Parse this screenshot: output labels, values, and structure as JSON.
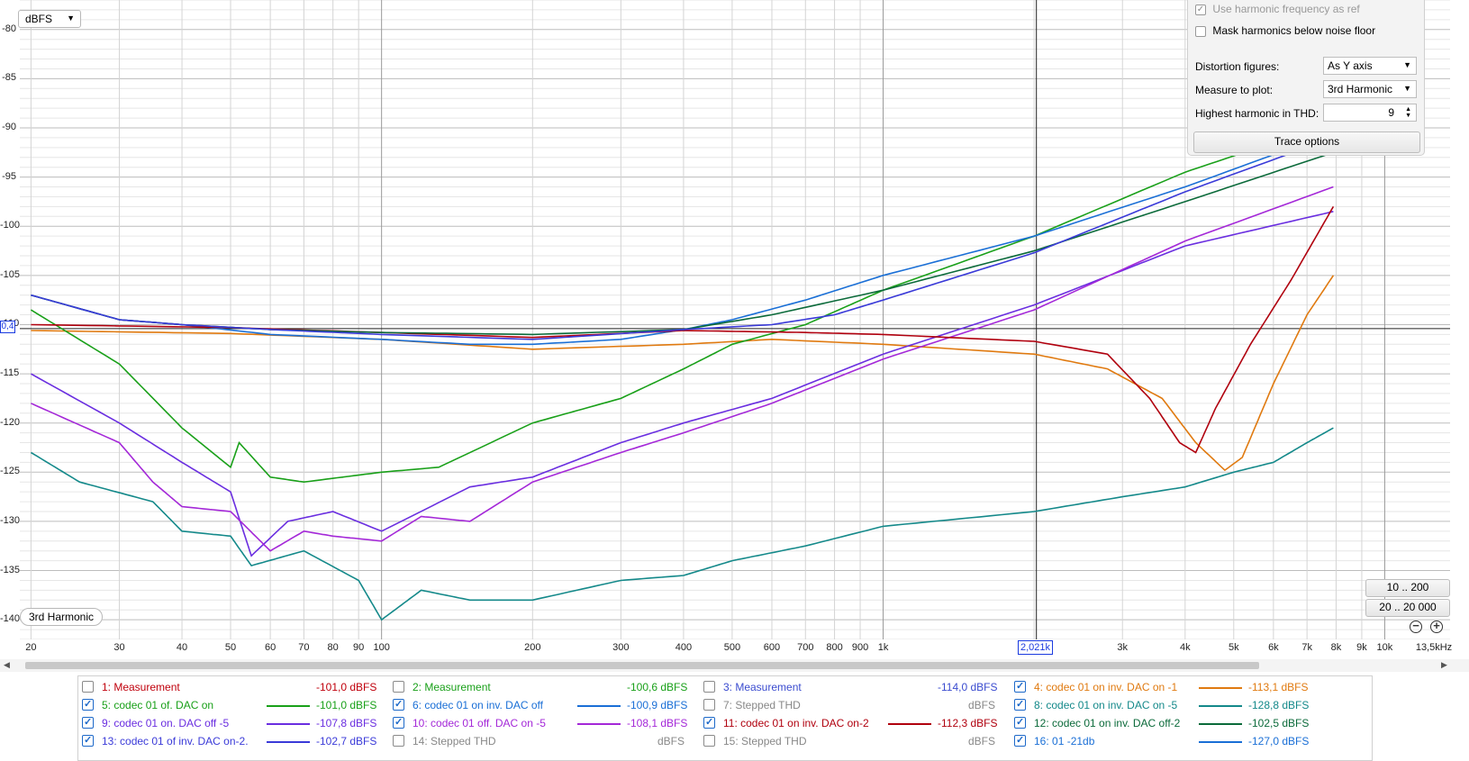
{
  "toolbar": {
    "unit": "dBFS"
  },
  "graph": {
    "badge": "3rd Harmonic",
    "cursor_y": "0,4",
    "cursor_x": "2,021k",
    "y_ticks": [
      "-80",
      "-85",
      "-90",
      "-95",
      "-100",
      "-105",
      "-110",
      "-115",
      "-120",
      "-125",
      "-130",
      "-135",
      "-140"
    ],
    "x_ticks": [
      "20",
      "30",
      "40",
      "50",
      "60",
      "70",
      "80",
      "90",
      "100",
      "200",
      "300",
      "400",
      "500",
      "600",
      "700",
      "800",
      "900",
      "1k",
      "2,021k",
      "3k",
      "4k",
      "5k",
      "6k",
      "7k",
      "8k",
      "9k",
      "10k",
      "13,5kHz"
    ]
  },
  "panel": {
    "use_harmonic_label": "Use harmonic frequency as ref",
    "mask_label": "Mask harmonics below noise floor",
    "distortion_label": "Distortion figures:",
    "distortion_value": "As Y axis",
    "measure_label": "Measure to plot:",
    "measure_value": "3rd Harmonic",
    "highest_label": "Highest harmonic in THD:",
    "highest_value": "9",
    "trace_button": "Trace options"
  },
  "zoom": {
    "btn1": "10 .. 200",
    "btn2": "20 .. 20 000"
  },
  "legend": [
    {
      "name": "1: Measurement",
      "value": "-101,0 dBFS",
      "checked": false,
      "color": "#c0000c"
    },
    {
      "name": "2: Measurement",
      "value": "-100,6 dBFS",
      "checked": false,
      "color": "#19a019"
    },
    {
      "name": "3: Measurement",
      "value": "-114,0 dBFS",
      "checked": false,
      "color": "#3a4bcf"
    },
    {
      "name": "4: codec 01 on inv. DAC on -1",
      "value": "-113,1 dBFS",
      "checked": true,
      "color": "#e07a10"
    },
    {
      "name": "5: codec 01 of. DAC on",
      "value": "-101,0 dBFS",
      "checked": true,
      "color": "#19a019"
    },
    {
      "name": "6: codec 01 on inv. DAC off",
      "value": "-100,9 dBFS",
      "checked": true,
      "color": "#1a6fd6"
    },
    {
      "name": "7: Stepped THD",
      "value": "dBFS",
      "checked": false,
      "color": "#999999"
    },
    {
      "name": "8: codec 01 on inv. DAC on -5",
      "value": "-128,8 dBFS",
      "checked": true,
      "color": "#14898a"
    },
    {
      "name": "9: codec 01 on. DAC off -5",
      "value": "-107,8 dBFS",
      "checked": true,
      "color": "#6a2ee0"
    },
    {
      "name": "10: codec 01 off. DAC on -5",
      "value": "-108,1 dBFS",
      "checked": true,
      "color": "#a428d8"
    },
    {
      "name": "11: codec 01 on inv. DAC on-2",
      "value": "-112,3 dBFS",
      "checked": true,
      "color": "#b0000e"
    },
    {
      "name": "12: codec 01 on inv. DAC off-2",
      "value": "-102,5 dBFS",
      "checked": true,
      "color": "#0b6a3a"
    },
    {
      "name": "13: codec 01 of inv. DAC on-2.",
      "value": "-102,7 dBFS",
      "checked": true,
      "color": "#3a3ad8"
    },
    {
      "name": "14: Stepped THD",
      "value": "dBFS",
      "checked": false,
      "color": "#999999"
    },
    {
      "name": "15: Stepped THD",
      "value": "dBFS",
      "checked": false,
      "color": "#999999"
    },
    {
      "name": "16: 01 -21db",
      "value": "-127,0 dBFS",
      "checked": true,
      "color": "#1a6fd6"
    }
  ],
  "chart_data": {
    "type": "line",
    "xlabel": "",
    "ylabel": "",
    "xlim": [
      19,
      13500
    ],
    "ylim": [
      -142,
      -77
    ],
    "x_scale": "log",
    "grid": true,
    "series": [
      {
        "name": "4: codec 01 on inv. DAC on -1",
        "color": "#e07a10",
        "points": [
          [
            20,
            -110.6
          ],
          [
            50,
            -110.9
          ],
          [
            100,
            -111.5
          ],
          [
            200,
            -112.5
          ],
          [
            400,
            -112.0
          ],
          [
            600,
            -111.5
          ],
          [
            1000,
            -112.0
          ],
          [
            2000,
            -113.0
          ],
          [
            2800,
            -114.5
          ],
          [
            3600,
            -117.5
          ],
          [
            4200,
            -122.0
          ],
          [
            4800,
            -124.8
          ],
          [
            5200,
            -123.5
          ],
          [
            6000,
            -116.0
          ],
          [
            7000,
            -109.0
          ],
          [
            7900,
            -105.0
          ]
        ]
      },
      {
        "name": "5: codec 01 of. DAC on",
        "color": "#19a019",
        "points": [
          [
            20,
            -108.5
          ],
          [
            30,
            -114.0
          ],
          [
            40,
            -120.5
          ],
          [
            50,
            -124.5
          ],
          [
            52,
            -122.0
          ],
          [
            60,
            -125.5
          ],
          [
            70,
            -126.0
          ],
          [
            100,
            -125.0
          ],
          [
            130,
            -124.5
          ],
          [
            200,
            -120.0
          ],
          [
            300,
            -117.5
          ],
          [
            400,
            -114.5
          ],
          [
            500,
            -112.0
          ],
          [
            700,
            -110.0
          ],
          [
            1000,
            -106.5
          ],
          [
            2000,
            -101.0
          ],
          [
            4000,
            -94.5
          ],
          [
            6000,
            -91.5
          ],
          [
            7900,
            -89.0
          ]
        ]
      },
      {
        "name": "6: codec 01 on inv. DAC off",
        "color": "#1a6fd6",
        "points": [
          [
            20,
            -107.0
          ],
          [
            30,
            -109.5
          ],
          [
            40,
            -110.0
          ],
          [
            60,
            -111.0
          ],
          [
            100,
            -111.5
          ],
          [
            150,
            -112.0
          ],
          [
            200,
            -112.0
          ],
          [
            300,
            -111.5
          ],
          [
            400,
            -110.5
          ],
          [
            500,
            -109.5
          ],
          [
            700,
            -107.5
          ],
          [
            1000,
            -105.0
          ],
          [
            2000,
            -101.0
          ],
          [
            4000,
            -96.0
          ],
          [
            7900,
            -90.5
          ]
        ]
      },
      {
        "name": "8: codec 01 on inv. DAC on -5",
        "color": "#14898a",
        "points": [
          [
            20,
            -123.0
          ],
          [
            25,
            -126.0
          ],
          [
            35,
            -128.0
          ],
          [
            40,
            -131.0
          ],
          [
            50,
            -131.5
          ],
          [
            55,
            -134.5
          ],
          [
            70,
            -133.0
          ],
          [
            90,
            -136.0
          ],
          [
            100,
            -140.0
          ],
          [
            120,
            -137.0
          ],
          [
            150,
            -138.0
          ],
          [
            200,
            -138.0
          ],
          [
            300,
            -136.0
          ],
          [
            400,
            -135.5
          ],
          [
            500,
            -134.0
          ],
          [
            700,
            -132.5
          ],
          [
            1000,
            -130.5
          ],
          [
            2000,
            -129.0
          ],
          [
            3000,
            -127.5
          ],
          [
            4000,
            -126.5
          ],
          [
            5000,
            -125.0
          ],
          [
            6000,
            -124.0
          ],
          [
            7000,
            -122.0
          ],
          [
            7900,
            -120.5
          ]
        ]
      },
      {
        "name": "9: codec 01 on. DAC off -5",
        "color": "#6a2ee0",
        "points": [
          [
            20,
            -115.0
          ],
          [
            30,
            -120.0
          ],
          [
            40,
            -124.0
          ],
          [
            50,
            -127.0
          ],
          [
            55,
            -133.5
          ],
          [
            65,
            -130.0
          ],
          [
            80,
            -129.0
          ],
          [
            100,
            -131.0
          ],
          [
            150,
            -126.5
          ],
          [
            200,
            -125.5
          ],
          [
            300,
            -122.0
          ],
          [
            400,
            -120.0
          ],
          [
            600,
            -117.5
          ],
          [
            1000,
            -113.0
          ],
          [
            2000,
            -108.0
          ],
          [
            4000,
            -102.0
          ],
          [
            7900,
            -98.5
          ]
        ]
      },
      {
        "name": "10: codec 01 off. DAC on -5",
        "color": "#a428d8",
        "points": [
          [
            20,
            -118.0
          ],
          [
            30,
            -122.0
          ],
          [
            35,
            -126.0
          ],
          [
            40,
            -128.5
          ],
          [
            50,
            -129.0
          ],
          [
            60,
            -133.0
          ],
          [
            70,
            -131.0
          ],
          [
            80,
            -131.5
          ],
          [
            100,
            -132.0
          ],
          [
            120,
            -129.5
          ],
          [
            150,
            -130.0
          ],
          [
            200,
            -126.0
          ],
          [
            300,
            -123.0
          ],
          [
            400,
            -121.0
          ],
          [
            600,
            -118.0
          ],
          [
            1000,
            -113.5
          ],
          [
            2000,
            -108.5
          ],
          [
            4000,
            -101.5
          ],
          [
            7900,
            -96.0
          ]
        ]
      },
      {
        "name": "11: codec 01 on inv. DAC on-2",
        "color": "#b0000e",
        "points": [
          [
            20,
            -110.0
          ],
          [
            50,
            -110.3
          ],
          [
            100,
            -110.8
          ],
          [
            200,
            -111.3
          ],
          [
            400,
            -110.6
          ],
          [
            700,
            -110.8
          ],
          [
            1000,
            -111.0
          ],
          [
            2000,
            -111.7
          ],
          [
            2800,
            -113.0
          ],
          [
            3400,
            -117.5
          ],
          [
            3900,
            -122.0
          ],
          [
            4200,
            -123.0
          ],
          [
            4600,
            -118.5
          ],
          [
            5400,
            -112.0
          ],
          [
            6500,
            -105.5
          ],
          [
            7900,
            -98.0
          ]
        ]
      },
      {
        "name": "12: codec 01 on inv. DAC off-2",
        "color": "#0b6a3a",
        "points": [
          [
            20,
            -107.0
          ],
          [
            30,
            -109.5
          ],
          [
            40,
            -110.0
          ],
          [
            60,
            -110.5
          ],
          [
            100,
            -110.8
          ],
          [
            200,
            -111.0
          ],
          [
            400,
            -110.5
          ],
          [
            600,
            -109.0
          ],
          [
            1000,
            -106.5
          ],
          [
            2000,
            -102.5
          ],
          [
            4000,
            -97.5
          ],
          [
            7900,
            -92.5
          ]
        ]
      },
      {
        "name": "13: codec 01 of inv. DAC on-2.",
        "color": "#3a3ad8",
        "points": [
          [
            20,
            -107.0
          ],
          [
            30,
            -109.5
          ],
          [
            40,
            -110.0
          ],
          [
            60,
            -110.5
          ],
          [
            100,
            -111.0
          ],
          [
            200,
            -111.5
          ],
          [
            400,
            -110.5
          ],
          [
            600,
            -110.0
          ],
          [
            800,
            -109.0
          ],
          [
            1000,
            -107.5
          ],
          [
            2000,
            -102.7
          ],
          [
            4000,
            -96.5
          ],
          [
            7900,
            -91.0
          ]
        ]
      }
    ]
  }
}
